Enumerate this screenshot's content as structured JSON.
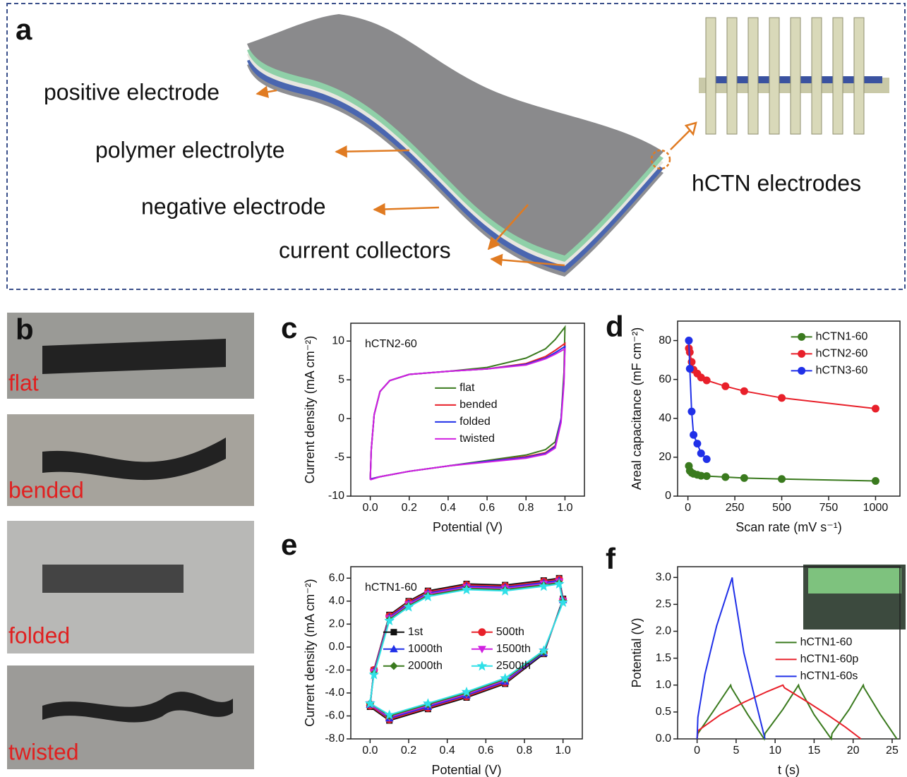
{
  "panel_labels": [
    "a",
    "b",
    "c",
    "d",
    "e",
    "f"
  ],
  "diagram": {
    "labels": [
      "positive electrode",
      "polymer electrolyte",
      "negative electrode",
      "current collectors",
      "hCTN electrodes"
    ]
  },
  "photos": {
    "labels": [
      "flat",
      "bended",
      "folded",
      "twisted"
    ]
  },
  "chart_data": [
    {
      "type": "line",
      "annotation": "hCTN2-60",
      "xlabel": "Potential (V)",
      "ylabel": "Current density (mA cm⁻²)",
      "xlim": [
        -0.1,
        1.1
      ],
      "ylim": [
        -10,
        12.3
      ],
      "xticks": [
        {
          "value": 0,
          "label": "0.0"
        },
        0.2,
        0.4,
        0.6,
        0.8,
        {
          "value": 1,
          "label": "1.0"
        }
      ],
      "yticks": [
        -10,
        -5,
        0,
        5,
        10
      ],
      "legend": "center",
      "series": [
        {
          "name": "flat",
          "color": "#3a7a1e",
          "x": [
            0,
            0.005,
            0.02,
            0.05,
            0.1,
            0.2,
            0.4,
            0.6,
            0.8,
            0.9,
            0.95,
            1.0,
            0.995,
            0.98,
            0.95,
            0.9,
            0.8,
            0.6,
            0.4,
            0.2,
            0.05,
            0
          ],
          "values": [
            -7.8,
            -4,
            0.5,
            3.5,
            4.9,
            5.7,
            6.1,
            6.6,
            7.8,
            9.0,
            10.2,
            11.8,
            6,
            0,
            -3,
            -4,
            -4.7,
            -5.4,
            -6.1,
            -6.8,
            -7.5,
            -7.8
          ]
        },
        {
          "name": "bended",
          "color": "#e8202a",
          "x": [
            0,
            0.005,
            0.02,
            0.05,
            0.1,
            0.2,
            0.4,
            0.6,
            0.8,
            0.9,
            0.95,
            1.0,
            0.995,
            0.98,
            0.95,
            0.9,
            0.8,
            0.6,
            0.4,
            0.2,
            0.05,
            0
          ],
          "values": [
            -7.8,
            -4,
            0.5,
            3.5,
            4.9,
            5.7,
            6.1,
            6.4,
            7.1,
            8.0,
            8.8,
            9.7,
            5,
            0,
            -3.5,
            -4.4,
            -4.9,
            -5.5,
            -6.1,
            -6.8,
            -7.5,
            -7.8
          ]
        },
        {
          "name": "folded",
          "color": "#2030e8",
          "x": [
            0,
            0.005,
            0.02,
            0.05,
            0.1,
            0.2,
            0.4,
            0.6,
            0.8,
            0.9,
            0.95,
            1.0,
            0.995,
            0.98,
            0.95,
            0.9,
            0.8,
            0.6,
            0.4,
            0.2,
            0.05,
            0
          ],
          "values": [
            -7.8,
            -4,
            0.5,
            3.5,
            4.9,
            5.7,
            6.1,
            6.4,
            7.0,
            7.8,
            8.5,
            9.3,
            5,
            0,
            -3.6,
            -4.5,
            -5.0,
            -5.5,
            -6.1,
            -6.8,
            -7.5,
            -7.8
          ]
        },
        {
          "name": "twisted",
          "color": "#d020e0",
          "x": [
            0,
            0.005,
            0.02,
            0.05,
            0.1,
            0.2,
            0.4,
            0.6,
            0.8,
            0.9,
            0.95,
            1.0,
            0.995,
            0.98,
            0.95,
            0.9,
            0.8,
            0.6,
            0.4,
            0.2,
            0.05,
            0
          ],
          "values": [
            -7.9,
            -4,
            0.5,
            3.5,
            4.9,
            5.7,
            6.1,
            6.4,
            6.9,
            7.7,
            8.3,
            9.0,
            4.5,
            -0.5,
            -3.8,
            -4.6,
            -5.1,
            -5.6,
            -6.1,
            -6.8,
            -7.5,
            -7.9
          ]
        }
      ]
    },
    {
      "type": "line",
      "xlabel": "Scan rate (mV s⁻¹)",
      "ylabel": "Areal capacitance (mF cm⁻²)",
      "xlim": [
        -55,
        1130
      ],
      "ylim": [
        0,
        90
      ],
      "xticks": [
        0,
        250,
        500,
        750,
        1000
      ],
      "yticks": [
        0,
        20,
        40,
        60,
        80
      ],
      "legend": "upper right",
      "series": [
        {
          "name": "hCTN1-60",
          "color": "#3a7a1e",
          "marker": "circle",
          "x": [
            5,
            10,
            20,
            30,
            50,
            70,
            100,
            200,
            300,
            500,
            1000
          ],
          "values": [
            15.5,
            13,
            12,
            11.5,
            11,
            10.5,
            10.3,
            9.8,
            9.3,
            8.8,
            7.8
          ]
        },
        {
          "name": "hCTN2-60",
          "color": "#e8202a",
          "marker": "circle",
          "x": [
            5,
            10,
            20,
            30,
            50,
            70,
            100,
            200,
            300,
            500,
            1000
          ],
          "values": [
            76,
            74,
            69,
            65,
            63,
            61,
            59.5,
            56.5,
            54,
            50.5,
            45
          ]
        },
        {
          "name": "hCTN3-60",
          "color": "#2030e8",
          "marker": "circle",
          "x": [
            5,
            10,
            20,
            30,
            50,
            70,
            100
          ],
          "values": [
            80,
            65.5,
            43.5,
            31.5,
            27,
            22,
            19
          ]
        }
      ]
    },
    {
      "type": "line",
      "annotation": "hCTN1-60",
      "xlabel": "Potential (V)",
      "ylabel": "Current density (mA cm⁻²)",
      "xlim": [
        -0.1,
        1.1
      ],
      "ylim": [
        -8,
        7
      ],
      "xticks": [
        {
          "value": 0,
          "label": "0.0"
        },
        0.2,
        0.4,
        0.6,
        0.8,
        {
          "value": 1,
          "label": "1.0"
        }
      ],
      "yticks": [
        {
          "value": -8,
          "label": "-8.0"
        },
        {
          "value": -6,
          "label": "-6.0"
        },
        {
          "value": -4,
          "label": "-4.0"
        },
        {
          "value": -2,
          "label": "-2.0"
        },
        {
          "value": 0,
          "label": "0.0"
        },
        {
          "value": 2,
          "label": "2.0"
        },
        {
          "value": 4,
          "label": "4.0"
        },
        {
          "value": 6,
          "label": "6.0"
        }
      ],
      "legend": "lower center",
      "legend_columns": 2,
      "series": [
        {
          "name": "1st",
          "color": "#111111",
          "marker": "square",
          "x": [
            0,
            0.02,
            0.1,
            0.2,
            0.3,
            0.5,
            0.7,
            0.9,
            0.98,
            1.0,
            0.9,
            0.7,
            0.5,
            0.3,
            0.1,
            0
          ],
          "values": [
            -5.2,
            -2,
            2.8,
            4,
            4.9,
            5.5,
            5.4,
            5.8,
            6.0,
            4.2,
            -0.6,
            -3.2,
            -4.4,
            -5.4,
            -6.4,
            -5.2
          ]
        },
        {
          "name": "500th",
          "color": "#e8202a",
          "marker": "circle",
          "x": [
            0,
            0.02,
            0.1,
            0.2,
            0.3,
            0.5,
            0.7,
            0.9,
            0.98,
            1.0,
            0.9,
            0.7,
            0.5,
            0.3,
            0.1,
            0
          ],
          "values": [
            -5.1,
            -2,
            2.7,
            3.9,
            4.8,
            5.4,
            5.3,
            5.7,
            5.9,
            4.1,
            -0.5,
            -3.1,
            -4.3,
            -5.3,
            -6.3,
            -5.1
          ]
        },
        {
          "name": "1000th",
          "color": "#2030e8",
          "marker": "triangle",
          "x": [
            0,
            0.02,
            0.1,
            0.2,
            0.3,
            0.5,
            0.7,
            0.9,
            0.98,
            1.0,
            0.9,
            0.7,
            0.5,
            0.3,
            0.1,
            0
          ],
          "values": [
            -5.0,
            -2.1,
            2.6,
            3.8,
            4.7,
            5.3,
            5.2,
            5.6,
            5.8,
            4.1,
            -0.5,
            -3.0,
            -4.2,
            -5.2,
            -6.2,
            -5.0
          ]
        },
        {
          "name": "1500th",
          "color": "#d020e0",
          "marker": "triangle-down",
          "x": [
            0,
            0.02,
            0.1,
            0.2,
            0.3,
            0.5,
            0.7,
            0.9,
            0.98,
            1.0,
            0.9,
            0.7,
            0.5,
            0.3,
            0.1,
            0
          ],
          "values": [
            -5.0,
            -2.2,
            2.5,
            3.7,
            4.6,
            5.2,
            5.1,
            5.5,
            5.7,
            4.0,
            -0.4,
            -2.9,
            -4.1,
            -5.1,
            -6.1,
            -5.0
          ]
        },
        {
          "name": "2000th",
          "color": "#3a7a1e",
          "marker": "diamond",
          "x": [
            0,
            0.02,
            0.1,
            0.2,
            0.3,
            0.5,
            0.7,
            0.9,
            0.98,
            1.0,
            0.9,
            0.7,
            0.5,
            0.3,
            0.1,
            0
          ],
          "values": [
            -4.9,
            -2.3,
            2.4,
            3.6,
            4.5,
            5.1,
            5.0,
            5.4,
            5.6,
            4.0,
            -0.4,
            -2.8,
            -4.0,
            -5.0,
            -6.0,
            -4.9
          ]
        },
        {
          "name": "2500th",
          "color": "#30e0e8",
          "marker": "star",
          "x": [
            0,
            0.02,
            0.1,
            0.2,
            0.3,
            0.5,
            0.7,
            0.9,
            0.98,
            1.0,
            0.9,
            0.7,
            0.5,
            0.3,
            0.1,
            0
          ],
          "values": [
            -4.9,
            -2.4,
            2.3,
            3.5,
            4.4,
            5.0,
            4.9,
            5.3,
            5.5,
            3.9,
            -0.3,
            -2.7,
            -3.9,
            -4.9,
            -5.9,
            -4.9
          ]
        }
      ]
    },
    {
      "type": "line",
      "xlabel": "t (s)",
      "ylabel": "Potential (V)",
      "xlim": [
        -2.5,
        26
      ],
      "ylim": [
        0,
        3.2
      ],
      "xticks": [
        0,
        5,
        10,
        15,
        20,
        25
      ],
      "yticks": [
        {
          "value": 0,
          "label": "0.0"
        },
        0.5,
        {
          "value": 1,
          "label": "1.0"
        },
        1.5,
        {
          "value": 2,
          "label": "2.0"
        },
        2.5,
        {
          "value": 3,
          "label": "3.0"
        }
      ],
      "legend": "center right",
      "series": [
        {
          "name": "hCTN1-60",
          "color": "#3a7a1e",
          "x": [
            0,
            0.1,
            2,
            4.3,
            4.4,
            6.5,
            8.6,
            8.7,
            11,
            13,
            13.1,
            15,
            17.2,
            17.3,
            19.5,
            21.3,
            21.4,
            23.5,
            25.6
          ],
          "values": [
            0,
            0.1,
            0.5,
            1.0,
            0.95,
            0.45,
            0,
            0.1,
            0.55,
            1.0,
            0.95,
            0.45,
            0,
            0.1,
            0.55,
            1.0,
            0.95,
            0.45,
            0
          ]
        },
        {
          "name": "hCTN1-60p",
          "color": "#e8202a",
          "x": [
            0,
            0.1,
            3,
            6,
            9,
            11,
            11.2,
            14,
            17,
            19,
            21
          ],
          "values": [
            0,
            0.15,
            0.45,
            0.68,
            0.88,
            1.0,
            0.95,
            0.7,
            0.42,
            0.22,
            0
          ]
        },
        {
          "name": "hCTN1-60s",
          "color": "#2030e8",
          "x": [
            0,
            0.1,
            1,
            2.5,
            4.5,
            4.6,
            6,
            7.5,
            8.7
          ],
          "values": [
            0,
            0.4,
            1.2,
            2.1,
            3.0,
            2.85,
            1.6,
            0.7,
            0
          ]
        }
      ]
    }
  ]
}
